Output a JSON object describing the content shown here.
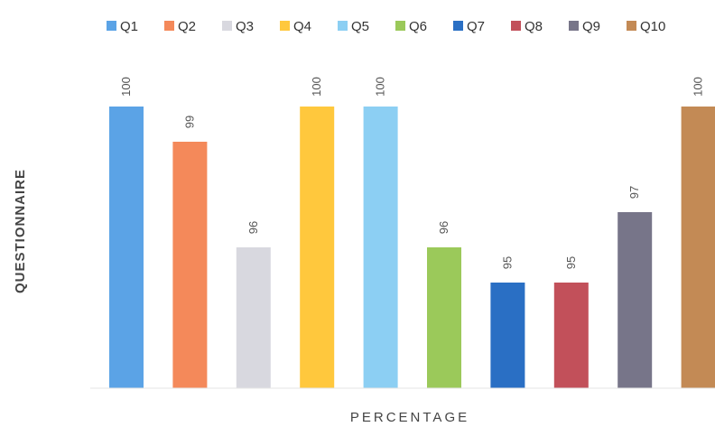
{
  "chart_data": {
    "type": "bar",
    "xlabel": "PERCENTAGE",
    "ylabel": "QUESTIONNAIRE",
    "categories": [
      "Q1",
      "Q2",
      "Q3",
      "Q4",
      "Q5",
      "Q6",
      "Q7",
      "Q8",
      "Q9",
      "Q10"
    ],
    "values": [
      100,
      99,
      96,
      100,
      100,
      96,
      95,
      95,
      97,
      100
    ],
    "ylim": [
      92,
      100
    ],
    "grid": false,
    "legend": "top",
    "series": [
      {
        "name": "Q1",
        "value": 100,
        "color": "#5ba3e6"
      },
      {
        "name": "Q2",
        "value": 99,
        "color": "#f4895a"
      },
      {
        "name": "Q3",
        "value": 96,
        "color": "#d8d8df"
      },
      {
        "name": "Q4",
        "value": 100,
        "color": "#ffc83d"
      },
      {
        "name": "Q5",
        "value": 100,
        "color": "#8ccff3"
      },
      {
        "name": "Q6",
        "value": 96,
        "color": "#9bc95a"
      },
      {
        "name": "Q7",
        "value": 95,
        "color": "#2a6fc4"
      },
      {
        "name": "Q8",
        "value": 95,
        "color": "#c2505a"
      },
      {
        "name": "Q9",
        "value": 97,
        "color": "#777589"
      },
      {
        "name": "Q10",
        "value": 100,
        "color": "#c38a55"
      }
    ]
  }
}
